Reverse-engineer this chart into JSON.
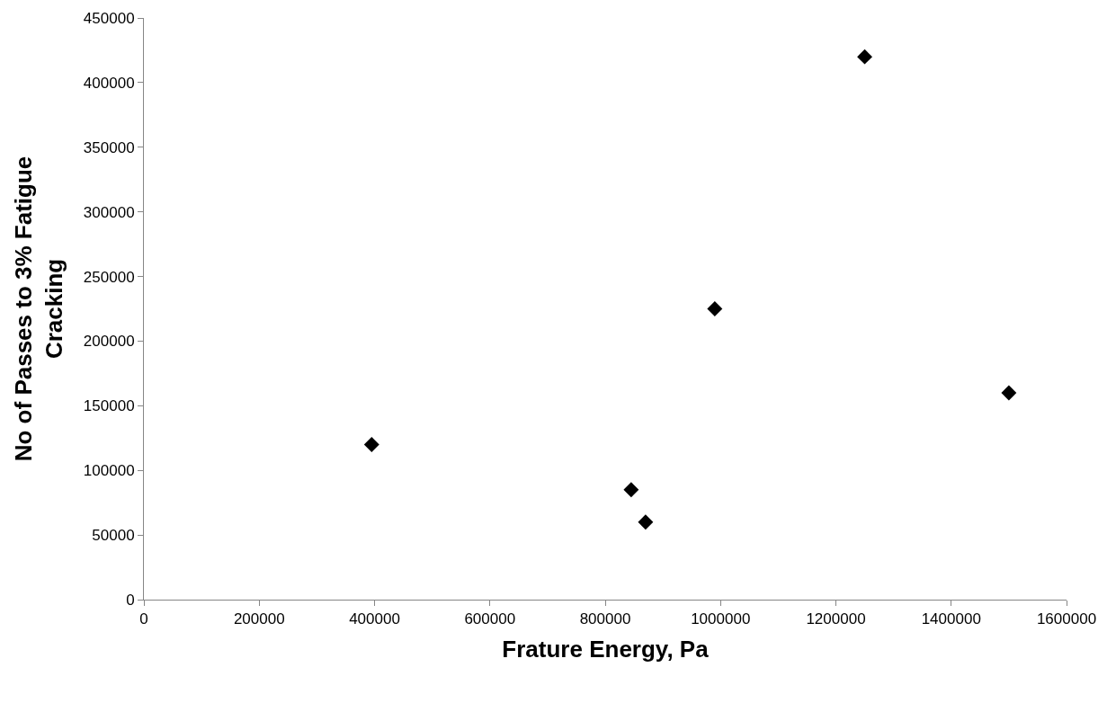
{
  "chart_data": {
    "type": "scatter",
    "xlabel": "Frature Energy, Pa",
    "ylabel": "No of Passes to 3% Fatigue Cracking",
    "x": [
      395000,
      845000,
      870000,
      990000,
      1250000,
      1500000
    ],
    "values": [
      120000,
      85000,
      60000,
      225000,
      420000,
      160000
    ],
    "color": "#000000",
    "marker": "diamond",
    "xlim": [
      0,
      1600000
    ],
    "xticks": [
      0,
      200000,
      400000,
      600000,
      800000,
      1000000,
      1200000,
      1400000,
      1600000
    ],
    "ylim": [
      0,
      450000
    ],
    "yticks": [
      0,
      50000,
      100000,
      150000,
      200000,
      250000,
      300000,
      350000,
      400000,
      450000
    ],
    "legend": false
  }
}
